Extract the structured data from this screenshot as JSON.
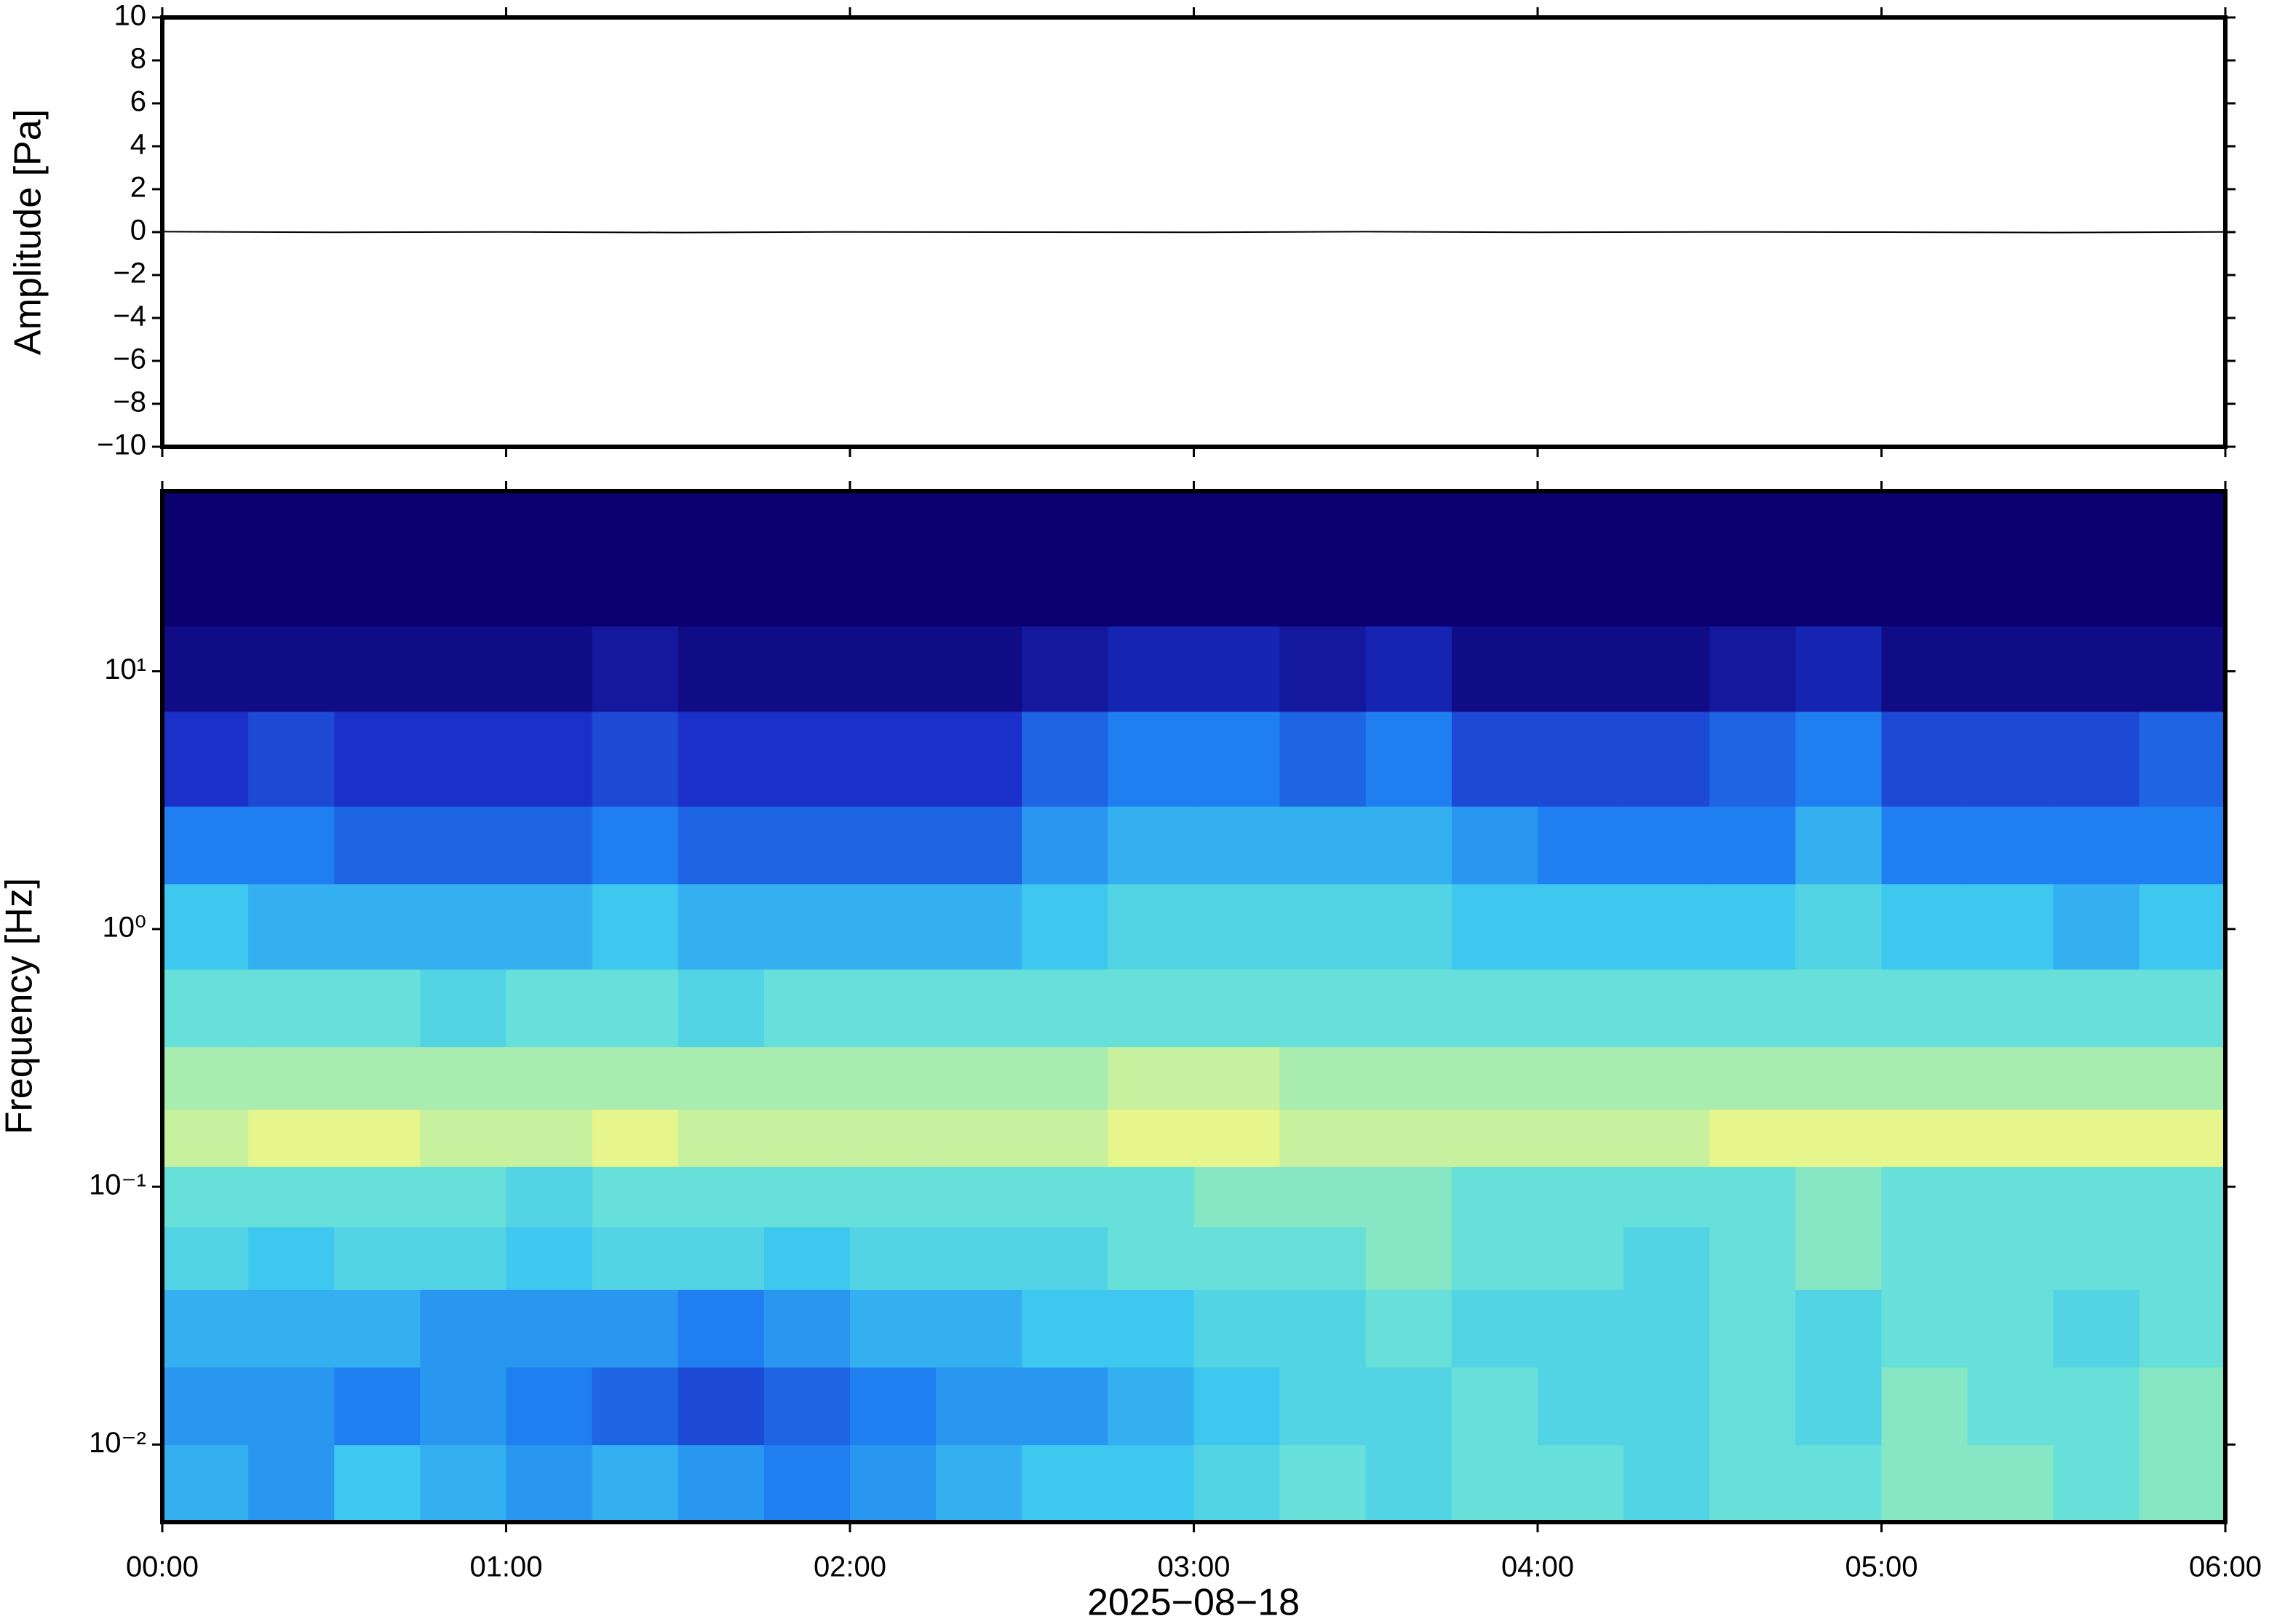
{
  "chart_data": [
    {
      "type": "line",
      "ylabel": "Amplitude [Pa]",
      "color": "#000000",
      "xlim": [
        0,
        360
      ],
      "ylim": [
        -10,
        10
      ],
      "yticks": [
        {
          "value": -10,
          "label": "−10"
        },
        {
          "value": -8,
          "label": "−8"
        },
        {
          "value": -6,
          "label": "−6"
        },
        {
          "value": -4,
          "label": "−4"
        },
        {
          "value": -2,
          "label": "−2"
        },
        0,
        2,
        4,
        6,
        8,
        10
      ],
      "x": [
        0,
        30,
        60,
        90,
        120,
        150,
        180,
        210,
        240,
        270,
        300,
        330,
        360
      ],
      "values": [
        0.02,
        -0.01,
        0.01,
        -0.02,
        0.01,
        0,
        -0.01,
        0.02,
        -0.01,
        0.01,
        0,
        -0.02,
        0.01
      ]
    },
    {
      "type": "heatmap",
      "ylabel": "Frequency [Hz]",
      "xlabel": "2025−08−18",
      "log_y": true,
      "xlim": [
        0,
        360
      ],
      "ylim": [
        0.005,
        50
      ],
      "xticks": [
        {
          "value": 0,
          "label": "00:00"
        },
        {
          "value": 60,
          "label": "01:00"
        },
        {
          "value": 120,
          "label": "02:00"
        },
        {
          "value": 180,
          "label": "03:00"
        },
        {
          "value": 240,
          "label": "04:00"
        },
        {
          "value": 300,
          "label": "05:00"
        },
        {
          "value": 360,
          "label": "06:00"
        }
      ],
      "yticks": [
        {
          "value": 0.01,
          "label": "10⁻²"
        },
        {
          "value": 0.1,
          "label": "10⁻¹"
        },
        {
          "value": 1,
          "label": "10⁰"
        },
        {
          "value": 10,
          "label": "10¹"
        }
      ],
      "time_bins": [
        0,
        15,
        30,
        45,
        60,
        75,
        90,
        105,
        120,
        135,
        150,
        165,
        180,
        195,
        210,
        225,
        240,
        255,
        270,
        285,
        300,
        315,
        330,
        345,
        360
      ],
      "frequency_bins": [
        0.005,
        0.01,
        0.02,
        0.04,
        0.07,
        0.12,
        0.2,
        0.35,
        0.7,
        1.5,
        3,
        7,
        15,
        50
      ],
      "colormap": [
        {
          "value": 0,
          "color": "#0b0070"
        },
        {
          "value": 2,
          "color": "#1a30c8"
        },
        {
          "value": 3.5,
          "color": "#1f7ff0"
        },
        {
          "value": 5,
          "color": "#3ec8f0"
        },
        {
          "value": 6,
          "color": "#66e0d8"
        },
        {
          "value": 7,
          "color": "#a8ecb0"
        },
        {
          "value": 8,
          "color": "#e6f58c"
        },
        {
          "value": 10,
          "color": "#f5c060"
        }
      ],
      "z": [
        [
          4.5,
          4,
          5,
          4.5,
          4,
          4.5,
          4,
          3.5,
          4,
          4.5,
          5,
          5,
          5.5,
          6,
          5.5,
          6,
          6,
          5.5,
          6,
          6,
          6.5,
          6.5,
          6,
          6.5
        ],
        [
          4,
          4,
          3.5,
          4,
          3.5,
          3,
          2.5,
          3,
          3.5,
          4,
          4,
          4.5,
          5,
          5.5,
          5.5,
          6,
          5.5,
          5.5,
          6,
          5.5,
          6.5,
          6,
          6,
          6.5
        ],
        [
          4.5,
          4.5,
          4.5,
          4,
          4,
          4,
          3.5,
          4,
          4.5,
          4.5,
          5,
          5,
          5.5,
          5.5,
          6,
          5.5,
          5.5,
          5.5,
          6,
          5.5,
          6,
          6,
          5.5,
          6
        ],
        [
          5.5,
          5,
          5.5,
          5.5,
          5,
          5.5,
          5.5,
          5,
          5.5,
          5.5,
          5.5,
          6,
          6,
          6,
          6.5,
          6,
          6,
          5.5,
          6,
          6.5,
          6,
          6,
          6,
          6
        ],
        [
          6,
          6,
          6,
          6,
          5.5,
          6,
          6,
          6,
          6,
          6,
          6,
          6,
          6.5,
          6.5,
          6.5,
          6,
          6,
          6,
          6,
          6.5,
          6,
          6,
          6,
          6
        ],
        [
          7.5,
          8,
          8,
          7.5,
          7.5,
          8,
          7.5,
          7.5,
          7.5,
          7.5,
          7.5,
          8,
          8,
          7.5,
          7.5,
          7.5,
          7.5,
          7.5,
          8,
          8,
          8,
          8,
          8,
          8
        ],
        [
          7,
          7,
          7,
          7,
          7,
          7,
          7,
          7,
          7,
          7,
          7,
          7.5,
          7.5,
          7,
          7,
          7,
          7,
          7,
          7,
          7,
          7,
          7,
          7,
          7
        ],
        [
          6,
          6,
          6,
          5.5,
          6,
          6,
          5.5,
          6,
          6,
          6,
          6,
          6,
          6,
          6,
          6,
          6,
          6,
          6,
          6,
          6,
          6,
          6,
          6,
          6
        ],
        [
          5,
          4.5,
          4.5,
          4.5,
          4.5,
          5,
          4.5,
          4.5,
          4.5,
          4.5,
          5,
          5.5,
          5.5,
          5.5,
          5.5,
          5,
          5,
          5,
          5,
          5.5,
          5,
          5,
          4.5,
          5
        ],
        [
          3.5,
          3.5,
          3,
          3,
          3,
          3.5,
          3,
          3,
          3,
          3,
          4,
          4.5,
          4.5,
          4.5,
          4.5,
          4,
          3.5,
          3.5,
          3.5,
          4.5,
          3.5,
          3.5,
          3.5,
          3.5
        ],
        [
          2,
          2.5,
          2,
          2,
          2,
          2.5,
          2,
          2,
          2,
          2,
          3,
          3.5,
          3.5,
          3,
          3.5,
          2.5,
          2.5,
          2.5,
          3,
          3.5,
          2.5,
          2.5,
          2.5,
          3
        ],
        [
          0.5,
          0.5,
          0.5,
          0.5,
          0.5,
          1,
          0.5,
          0.5,
          0.5,
          0.5,
          1,
          1.5,
          1.5,
          1,
          1.5,
          0.5,
          0.5,
          0.5,
          1,
          1.5,
          0.5,
          0.5,
          0.5,
          0.5
        ],
        [
          0,
          0,
          0,
          0,
          0,
          0,
          0,
          0,
          0,
          0,
          0,
          0,
          0,
          0,
          0,
          0,
          0,
          0,
          0,
          0,
          0,
          0,
          0,
          0
        ]
      ]
    }
  ]
}
